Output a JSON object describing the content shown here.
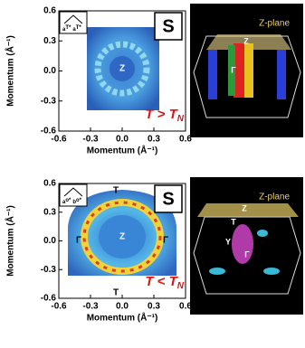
{
  "panels": [
    {
      "y_label": "Momentum (Å⁻¹)",
      "x_label": "Momentum (Å⁻¹)",
      "xlim": [
        -0.6,
        0.6
      ],
      "ylim": [
        -0.6,
        0.6
      ],
      "xticks": [
        -0.6,
        -0.3,
        {
          "value": 0,
          "label": "0.0"
        },
        0.3,
        0.6
      ],
      "yticks": [
        0.6,
        0.3,
        {
          "value": 0,
          "label": "0.0"
        },
        -0.3,
        -0.6
      ],
      "badge": "S",
      "inset": [
        "a",
        "T*",
        "a",
        "T*"
      ],
      "labels": [
        "Z"
      ],
      "condition": {
        "main": "T > T",
        "sub": "N"
      },
      "fermi_surface": {
        "plane": "Z-plane",
        "labels": [
          "Z",
          "Γ"
        ]
      }
    },
    {
      "y_label": "Momentum (Å⁻¹)",
      "x_label": "Momentum (Å⁻¹)",
      "xlim": [
        -0.6,
        0.6
      ],
      "ylim": [
        -0.6,
        0.6
      ],
      "xticks": [
        -0.6,
        -0.3,
        {
          "value": 0,
          "label": "0.0"
        },
        0.3,
        0.6
      ],
      "yticks": [
        0.6,
        0.3,
        {
          "value": 0,
          "label": "0.0"
        },
        -0.3,
        -0.6
      ],
      "badge": "S",
      "inset": [
        "a",
        "o*",
        "b",
        "o*"
      ],
      "labels": [
        "T",
        "Z",
        "Γ",
        "Γ",
        "T"
      ],
      "condition": {
        "main": "T < T",
        "sub": "N"
      },
      "fermi_surface": {
        "plane": "Z-plane",
        "labels": [
          "Z",
          "T",
          "Y",
          "Γ"
        ]
      }
    }
  ]
}
